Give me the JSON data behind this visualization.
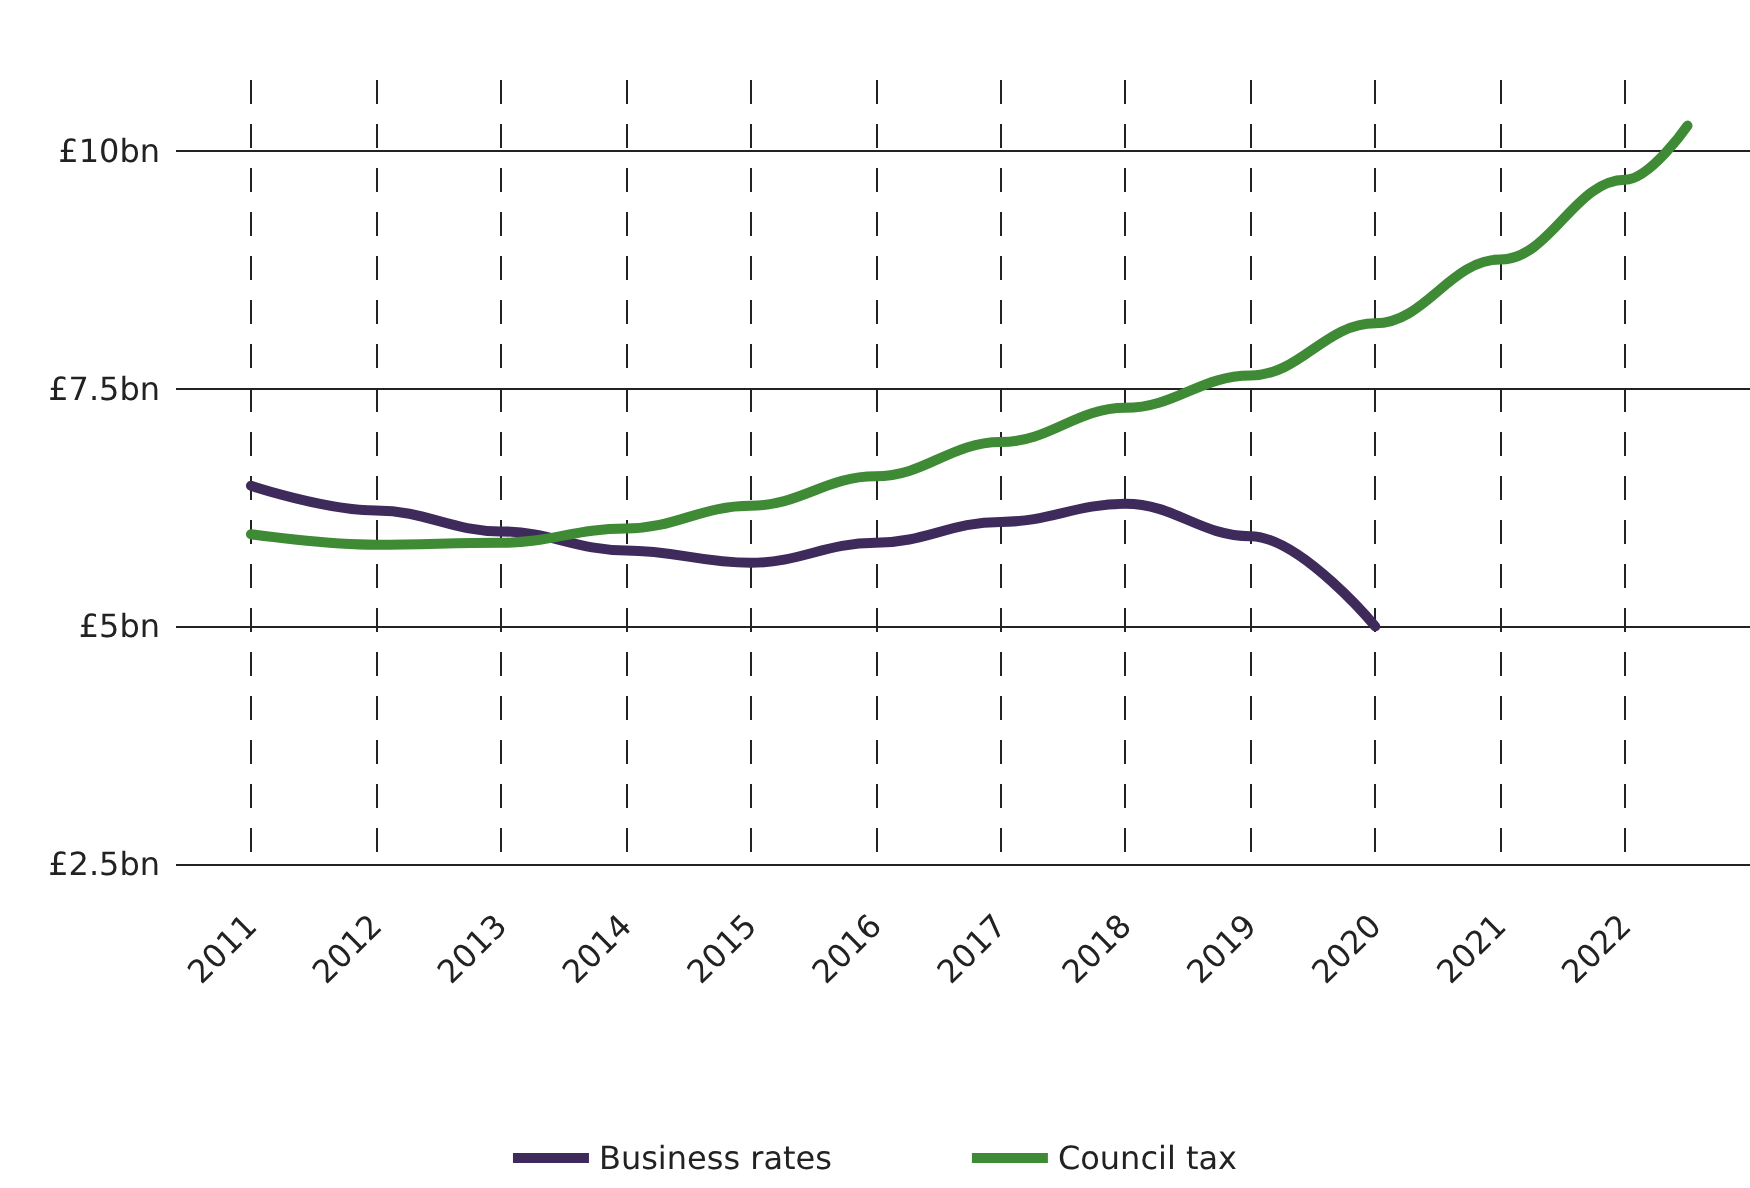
{
  "chart_data": {
    "type": "line",
    "x": [
      2011,
      2012,
      2013,
      2014,
      2015,
      2016,
      2017,
      2018,
      2019,
      2020
    ],
    "series": [
      {
        "name": "Business rates",
        "color": "#3f2a5c",
        "values": [
          6.48,
          6.22,
          6.0,
          5.8,
          5.67,
          5.88,
          6.1,
          6.29,
          5.95,
          5.0
        ]
      },
      {
        "name": "Council tax",
        "color": "#3e8a35",
        "x": [
          2011,
          2012,
          2013,
          2014,
          2015,
          2016,
          2017,
          2018,
          2019,
          2020,
          2021,
          2022,
          2022.5
        ],
        "values": [
          5.97,
          5.86,
          5.88,
          6.03,
          6.27,
          6.58,
          6.94,
          7.3,
          7.64,
          8.19,
          8.86,
          9.7,
          10.27
        ]
      }
    ],
    "xlim": [
      2010.4,
      2023
    ],
    "xticks": [
      2011,
      2012,
      2013,
      2014,
      2015,
      2016,
      2017,
      2018,
      2019,
      2020,
      2021,
      2022
    ],
    "ylim": [
      2.5,
      10.75
    ],
    "yticks": [
      {
        "value": 2.5,
        "label": "£2.5bn"
      },
      {
        "value": 5,
        "label": "£5bn"
      },
      {
        "value": 7.5,
        "label": "£7.5bn"
      },
      {
        "value": 10,
        "label": "£10bn"
      }
    ],
    "grid": true,
    "legend": "bottom",
    "marker": "none",
    "line_style": "solid"
  }
}
